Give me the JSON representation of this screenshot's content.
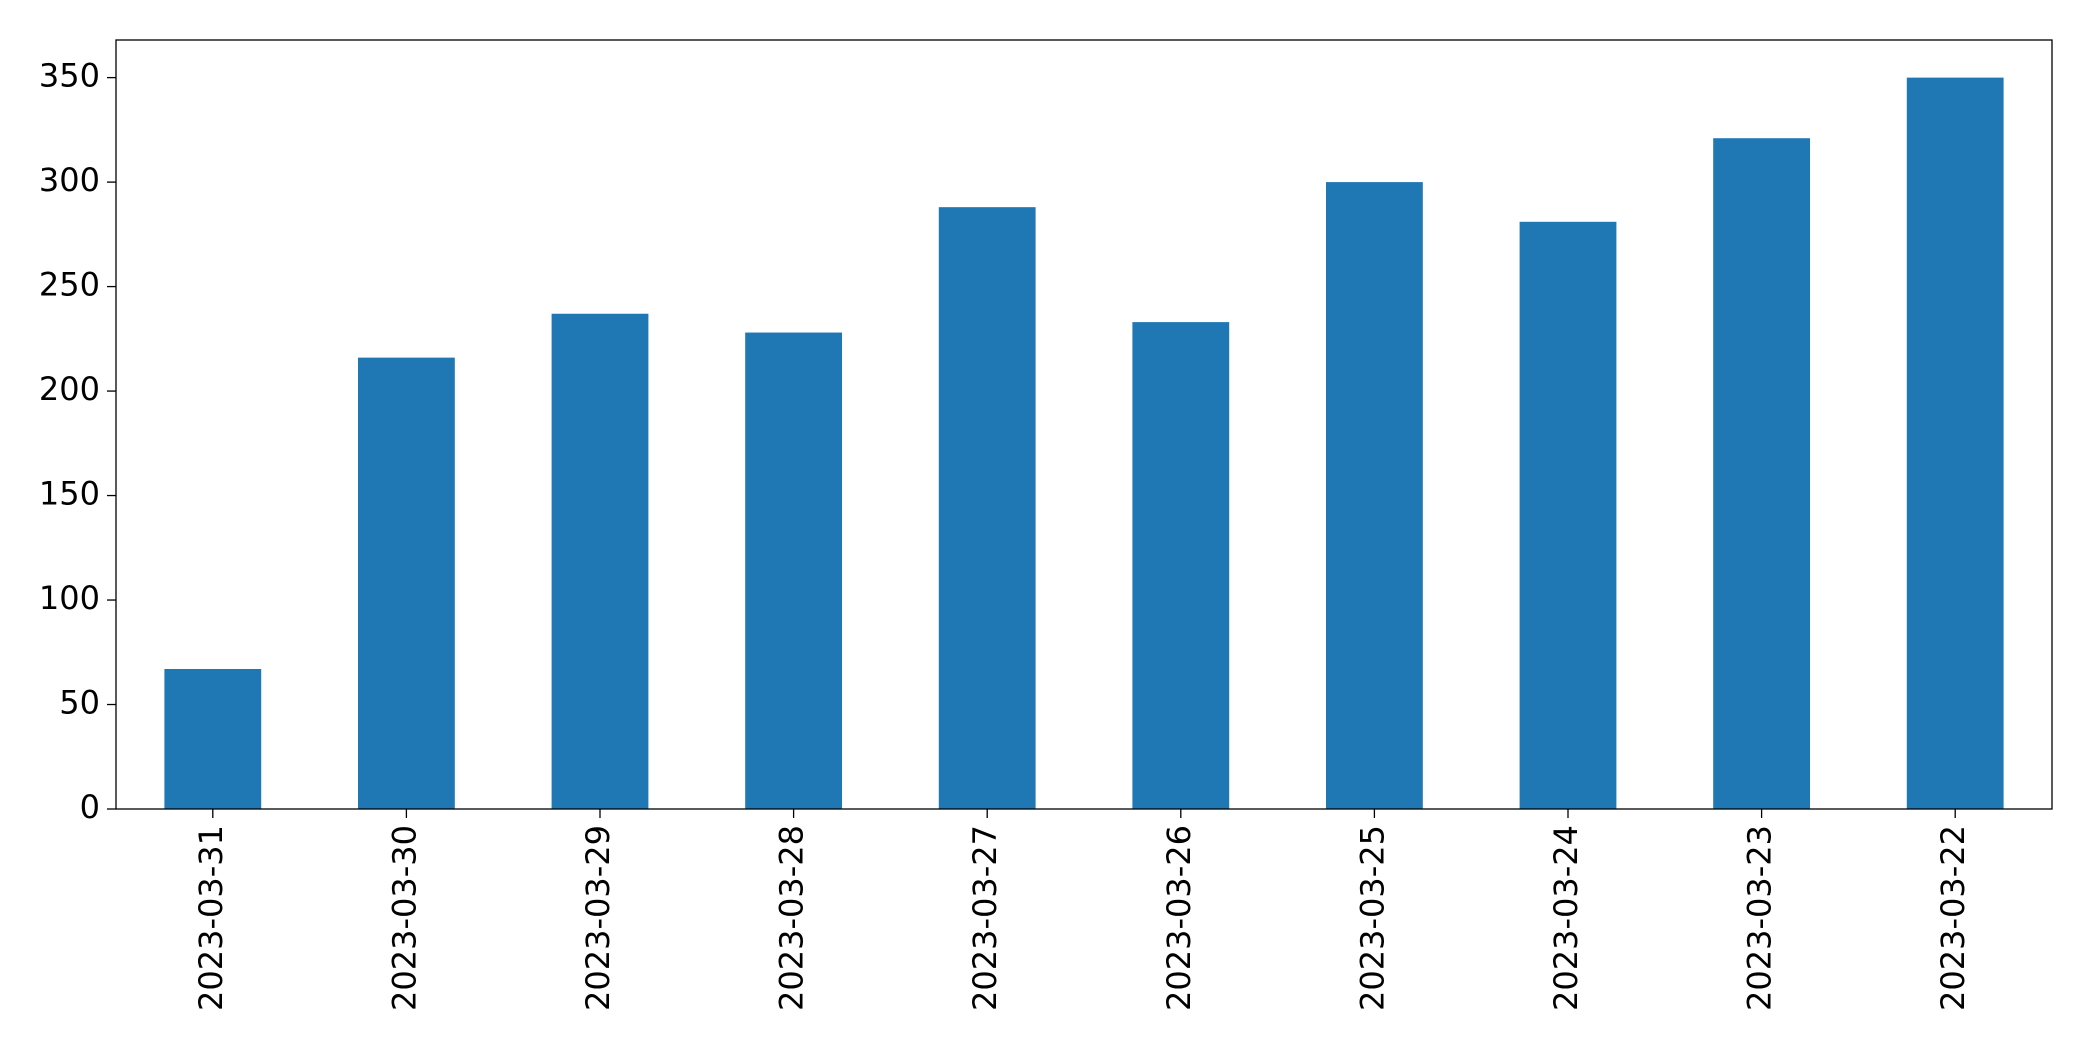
{
  "chart_data": {
    "type": "bar",
    "categories": [
      "2023-03-31",
      "2023-03-30",
      "2023-03-29",
      "2023-03-28",
      "2023-03-27",
      "2023-03-26",
      "2023-03-25",
      "2023-03-24",
      "2023-03-23",
      "2023-03-22"
    ],
    "values": [
      67,
      216,
      237,
      228,
      288,
      233,
      300,
      281,
      321,
      350
    ],
    "color": "#1f77b4",
    "ylim": [
      0,
      368
    ],
    "yticks": [
      0,
      50,
      100,
      150,
      200,
      250,
      300,
      350
    ],
    "grid": false
  }
}
